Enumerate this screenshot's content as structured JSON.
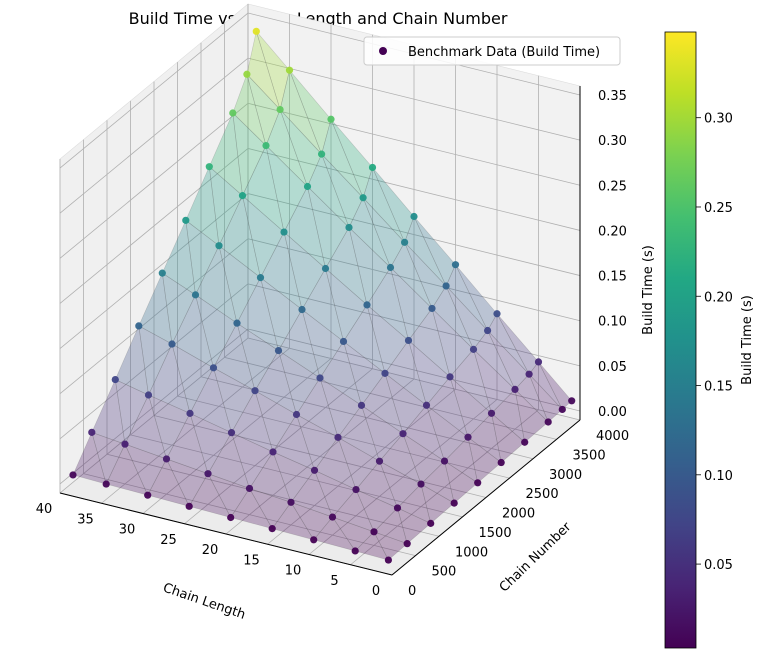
{
  "chart_data": {
    "type": "scatter",
    "projection": "3d",
    "title": "Build Time vs. Chain Length and Chain Number",
    "xlabel": "Chain Length",
    "ylabel": "Chain Number",
    "zlabel": "Build Time (s)",
    "xlim": [
      0,
      40
    ],
    "ylim": [
      0,
      4000
    ],
    "zlim": [
      -0.01,
      0.36
    ],
    "x_ticks": [
      "0",
      "5",
      "10",
      "15",
      "20",
      "25",
      "30",
      "35",
      "40"
    ],
    "y_ticks": [
      "0",
      "500",
      "1000",
      "1500",
      "2000",
      "2500",
      "3000",
      "3500",
      "4000"
    ],
    "z_ticks": [
      "0.00",
      "0.05",
      "0.10",
      "0.15",
      "0.20",
      "0.25",
      "0.30",
      "0.35"
    ],
    "grid": true,
    "legend": {
      "placement": "top-right",
      "entries": [
        {
          "label": "Benchmark Data (Build Time)",
          "color": "#440154"
        }
      ]
    },
    "colorbar": {
      "label": "Build Time (s)",
      "min": 0.003,
      "max": 0.348,
      "ticks": [
        "0.05",
        "0.10",
        "0.15",
        "0.20",
        "0.25",
        "0.30"
      ],
      "colormap": "viridis"
    },
    "surface": {
      "style": "triangulated",
      "alpha": 0.3
    },
    "series": [
      {
        "name": "Benchmark Data (Build Time)",
        "x_values": [
          1,
          5,
          10,
          15,
          20,
          25,
          30,
          35,
          39
        ],
        "y_values": [
          100,
          500,
          1000,
          1500,
          2000,
          2500,
          3000,
          3500,
          3900
        ],
        "z_rows": [
          [
            0.0,
            0.001,
            0.002,
            0.003,
            0.004,
            0.005,
            0.006,
            0.007,
            0.008
          ],
          [
            0.001,
            0.005,
            0.01,
            0.015,
            0.019,
            0.024,
            0.029,
            0.034,
            0.038
          ],
          [
            0.002,
            0.01,
            0.019,
            0.029,
            0.038,
            0.048,
            0.058,
            0.067,
            0.075
          ],
          [
            0.003,
            0.015,
            0.029,
            0.044,
            0.058,
            0.073,
            0.087,
            0.102,
            0.113
          ],
          [
            0.004,
            0.019,
            0.038,
            0.058,
            0.077,
            0.096,
            0.115,
            0.135,
            0.15
          ],
          [
            0.005,
            0.024,
            0.048,
            0.072,
            0.096,
            0.12,
            0.144,
            0.168,
            0.187
          ],
          [
            0.006,
            0.029,
            0.058,
            0.087,
            0.115,
            0.144,
            0.173,
            0.202,
            0.225
          ],
          [
            0.007,
            0.034,
            0.067,
            0.101,
            0.135,
            0.168,
            0.202,
            0.236,
            0.263
          ],
          [
            0.008,
            0.038,
            0.075,
            0.113,
            0.15,
            0.188,
            0.225,
            0.263,
            0.293
          ],
          [
            0.009,
            0.043,
            0.085,
            0.128,
            0.17,
            0.213,
            0.255,
            0.298,
            0.332
          ]
        ],
        "y_row_values": [
          100,
          500,
          1000,
          1500,
          2000,
          2500,
          3000,
          3500,
          3800,
          4000
        ]
      }
    ]
  }
}
